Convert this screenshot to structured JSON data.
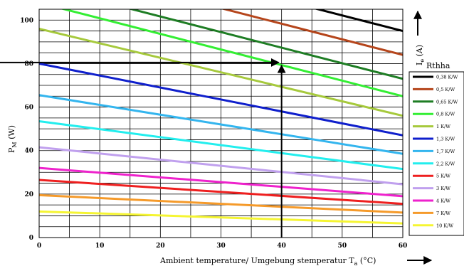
{
  "chart_data": {
    "type": "line",
    "xlabel_main": "Ambient temperature/ Umgebung stemperatur T",
    "xlabel_sub": "a",
    "xlabel_unit": " (°C)",
    "ylabel_main": "P",
    "ylabel_sub": "M",
    "ylabel_unit": " (W)",
    "right_label_main": "I",
    "right_label_sub": "e",
    "right_label_unit": " (A)",
    "legend_title": "Rthha",
    "xlim": [
      0,
      60
    ],
    "ylim": [
      0,
      105
    ],
    "x_ticks": [
      0,
      10,
      20,
      30,
      40,
      50,
      60
    ],
    "y_ticks": [
      0,
      20,
      40,
      60,
      80,
      100
    ],
    "x_grid_step": 5,
    "y_grid_step": 5,
    "grid": true,
    "legend_position": "right",
    "series": [
      {
        "name": "0,38 K/W",
        "color": "#000000",
        "x": [
          0,
          60
        ],
        "y": [
          138,
          95
        ]
      },
      {
        "name": "0,5 K/W",
        "color": "#b5451b",
        "x": [
          0,
          60
        ],
        "y": [
          127,
          84
        ]
      },
      {
        "name": "0,65 K/W",
        "color": "#1e7d24",
        "x": [
          0,
          60
        ],
        "y": [
          116,
          73
        ]
      },
      {
        "name": "0,8 K/W",
        "color": "#33ee33",
        "x": [
          0,
          60
        ],
        "y": [
          108,
          65
        ]
      },
      {
        "name": "1 K/W",
        "color": "#a6c93c",
        "x": [
          0,
          60
        ],
        "y": [
          96,
          56
        ]
      },
      {
        "name": "1,3 K/W",
        "color": "#0f1fcc",
        "x": [
          0,
          60
        ],
        "y": [
          80,
          47
        ]
      },
      {
        "name": "1,7 K/W",
        "color": "#33b5ee",
        "x": [
          0,
          60
        ],
        "y": [
          65.5,
          38.5
        ]
      },
      {
        "name": "2,2 K/W",
        "color": "#22eeee",
        "x": [
          0,
          60
        ],
        "y": [
          53.5,
          31.5
        ]
      },
      {
        "name": "5 K/W",
        "color": "#ee1f1f",
        "x": [
          0,
          60
        ],
        "y": [
          26.5,
          15.5
        ]
      },
      {
        "name": "3 K/W",
        "color": "#c0a0ee",
        "x": [
          0,
          60
        ],
        "y": [
          41.5,
          24.5
        ]
      },
      {
        "name": "4 K/W",
        "color": "#ee22cc",
        "x": [
          0,
          60
        ],
        "y": [
          32,
          19
        ]
      },
      {
        "name": "7 K/W",
        "color": "#f59a2a",
        "x": [
          0,
          60
        ],
        "y": [
          19.5,
          11.5
        ]
      },
      {
        "name": "10 K/W",
        "color": "#f5f532",
        "x": [
          0,
          60
        ],
        "y": [
          12,
          6.5
        ]
      }
    ],
    "annotation": {
      "color": "#000000",
      "from": [
        -13,
        80.5
      ],
      "corner": [
        40,
        80.5
      ],
      "to": [
        40,
        0
      ]
    }
  }
}
